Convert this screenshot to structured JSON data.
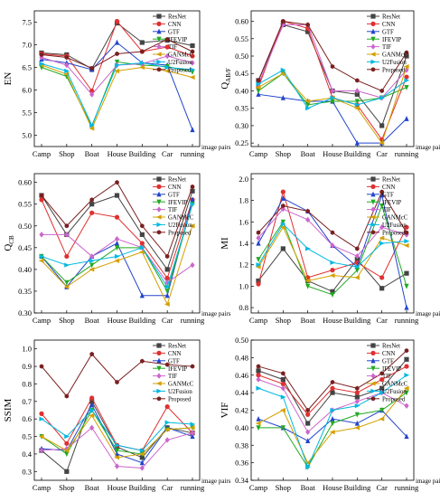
{
  "series_names": [
    "ResNet",
    "CNN",
    "GTF",
    "IFEVIP",
    "TIF",
    "GANMcC",
    "U2Fusion",
    "Proposed"
  ],
  "series_colors": [
    "#444444",
    "#e03030",
    "#2244cc",
    "#22aa22",
    "#cc66cc",
    "#d4a000",
    "#00b8e0",
    "#7a2020"
  ],
  "series_markers": [
    "square",
    "circle",
    "triangle",
    "triangle-down",
    "diamond",
    "triangle-left",
    "triangle-right",
    "hexagon"
  ],
  "categories": [
    "Camp",
    "Shop",
    "Boat",
    "House",
    "Building",
    "Car",
    "running"
  ],
  "x_annotation": "image pairs",
  "chart_data": [
    {
      "type": "line",
      "ylabel": "EN",
      "ylim": [
        4.75,
        7.75
      ],
      "yticks": [
        5.0,
        5.5,
        6.0,
        6.5,
        7.0,
        7.5
      ],
      "tick_decimals": 1,
      "categories": [
        "Camp",
        "Shop",
        "Boat",
        "House",
        "Building",
        "Car",
        "running"
      ],
      "series": [
        {
          "name": "ResNet",
          "values": [
            6.82,
            6.78,
            6.47,
            7.48,
            7.05,
            7.1,
            6.98
          ]
        },
        {
          "name": "CNN",
          "values": [
            6.8,
            6.75,
            5.98,
            7.52,
            6.85,
            6.95,
            6.75
          ]
        },
        {
          "name": "GTF",
          "values": [
            6.68,
            6.6,
            6.45,
            7.05,
            6.6,
            6.55,
            5.12
          ]
        },
        {
          "name": "IFEVIP",
          "values": [
            6.5,
            6.3,
            5.2,
            6.62,
            6.55,
            6.52,
            6.4
          ]
        },
        {
          "name": "TIF",
          "values": [
            6.72,
            6.55,
            5.9,
            6.55,
            6.58,
            6.75,
            6.6
          ]
        },
        {
          "name": "GANMcC",
          "values": [
            6.55,
            6.35,
            5.15,
            6.42,
            6.5,
            6.42,
            6.28
          ]
        },
        {
          "name": "U2Fusion",
          "values": [
            6.58,
            6.42,
            5.22,
            6.55,
            6.6,
            6.5,
            6.45
          ]
        },
        {
          "name": "Proposed",
          "values": [
            6.78,
            6.72,
            6.48,
            6.8,
            6.85,
            7.12,
            6.85
          ]
        }
      ]
    },
    {
      "type": "line",
      "ylabel": "Q_AB/F",
      "ylim": [
        0.24,
        0.63
      ],
      "yticks": [
        0.25,
        0.3,
        0.35,
        0.4,
        0.45,
        0.5,
        0.55,
        0.6
      ],
      "tick_decimals": 2,
      "categories": [
        "Camp",
        "Shop",
        "Boat",
        "House",
        "Building",
        "Car",
        "running"
      ],
      "series": [
        {
          "name": "ResNet",
          "values": [
            0.43,
            0.59,
            0.57,
            0.4,
            0.39,
            0.3,
            0.5
          ]
        },
        {
          "name": "CNN",
          "values": [
            0.41,
            0.6,
            0.58,
            0.38,
            0.36,
            0.26,
            0.44
          ]
        },
        {
          "name": "GTF",
          "values": [
            0.39,
            0.38,
            0.37,
            0.37,
            0.25,
            0.25,
            0.32
          ]
        },
        {
          "name": "IFEVIP",
          "values": [
            0.4,
            0.45,
            0.36,
            0.37,
            0.37,
            0.38,
            0.41
          ]
        },
        {
          "name": "TIF",
          "values": [
            0.42,
            0.59,
            0.59,
            0.4,
            0.4,
            0.38,
            0.46
          ]
        },
        {
          "name": "GANMcC",
          "values": [
            0.41,
            0.45,
            0.37,
            0.38,
            0.35,
            0.25,
            0.47
          ]
        },
        {
          "name": "U2Fusion",
          "values": [
            0.42,
            0.46,
            0.35,
            0.38,
            0.36,
            0.38,
            0.43
          ]
        },
        {
          "name": "Proposed",
          "values": [
            0.43,
            0.6,
            0.59,
            0.47,
            0.43,
            0.4,
            0.51
          ]
        }
      ]
    },
    {
      "type": "line",
      "ylabel": "Q_CB",
      "ylim": [
        0.3,
        0.62
      ],
      "yticks": [
        0.3,
        0.35,
        0.4,
        0.45,
        0.5,
        0.55,
        0.6
      ],
      "tick_decimals": 2,
      "categories": [
        "Camp",
        "Shop",
        "Boat",
        "House",
        "Building",
        "Car",
        "running"
      ],
      "series": [
        {
          "name": "ResNet",
          "values": [
            0.57,
            0.48,
            0.55,
            0.57,
            0.48,
            0.4,
            0.58
          ]
        },
        {
          "name": "CNN",
          "values": [
            0.56,
            0.43,
            0.53,
            0.52,
            0.46,
            0.38,
            0.56
          ]
        },
        {
          "name": "GTF",
          "values": [
            0.43,
            0.36,
            0.43,
            0.46,
            0.34,
            0.34,
            0.56
          ]
        },
        {
          "name": "IFEVIP",
          "values": [
            0.43,
            0.37,
            0.41,
            0.45,
            0.45,
            0.35,
            0.55
          ]
        },
        {
          "name": "TIF",
          "values": [
            0.48,
            0.48,
            0.43,
            0.47,
            0.45,
            0.37,
            0.41
          ]
        },
        {
          "name": "GANMcC",
          "values": [
            0.42,
            0.36,
            0.4,
            0.42,
            0.44,
            0.32,
            0.5
          ]
        },
        {
          "name": "U2Fusion",
          "values": [
            0.43,
            0.41,
            0.42,
            0.43,
            0.45,
            0.36,
            0.55
          ]
        },
        {
          "name": "Proposed",
          "values": [
            0.57,
            0.5,
            0.56,
            0.6,
            0.5,
            0.43,
            0.59
          ]
        }
      ]
    },
    {
      "type": "line",
      "ylabel": "MI",
      "ylim": [
        0.75,
        2.05
      ],
      "yticks": [
        0.8,
        1.0,
        1.2,
        1.4,
        1.6,
        1.8,
        2.0
      ],
      "tick_decimals": 1,
      "categories": [
        "Camp",
        "Shop",
        "Boat",
        "House",
        "Building",
        "Car",
        "running"
      ],
      "series": [
        {
          "name": "ResNet",
          "values": [
            1.05,
            1.35,
            1.05,
            0.95,
            1.25,
            0.98,
            1.12
          ]
        },
        {
          "name": "CNN",
          "values": [
            1.02,
            1.88,
            1.08,
            1.15,
            1.22,
            1.08,
            1.55
          ]
        },
        {
          "name": "GTF",
          "values": [
            1.4,
            1.82,
            1.7,
            1.38,
            1.18,
            1.85,
            0.8
          ]
        },
        {
          "name": "IFEVIP",
          "values": [
            1.25,
            1.6,
            1.0,
            0.92,
            1.15,
            1.75,
            1.0
          ]
        },
        {
          "name": "TIF",
          "values": [
            1.45,
            1.72,
            1.62,
            1.38,
            1.28,
            1.55,
            1.48
          ]
        },
        {
          "name": "GANMcC",
          "values": [
            1.18,
            1.55,
            1.05,
            1.1,
            1.08,
            1.45,
            1.38
          ]
        },
        {
          "name": "U2Fusion",
          "values": [
            1.2,
            1.58,
            1.35,
            1.22,
            1.18,
            1.4,
            1.42
          ]
        },
        {
          "name": "Proposed",
          "values": [
            1.5,
            1.75,
            1.7,
            1.5,
            1.35,
            1.88,
            1.5
          ]
        }
      ]
    },
    {
      "type": "line",
      "ylabel": "SSIM",
      "ylim": [
        0.25,
        1.05
      ],
      "yticks": [
        0.3,
        0.4,
        0.5,
        0.6,
        0.7,
        0.8,
        0.9,
        1.0
      ],
      "tick_decimals": 1,
      "categories": [
        "Camp",
        "Shop",
        "Boat",
        "House",
        "Building",
        "Car",
        "running"
      ],
      "series": [
        {
          "name": "ResNet",
          "values": [
            0.42,
            0.3,
            0.7,
            0.44,
            0.38,
            0.55,
            0.52
          ]
        },
        {
          "name": "CNN",
          "values": [
            0.63,
            0.46,
            0.72,
            0.45,
            0.42,
            0.67,
            0.52
          ]
        },
        {
          "name": "GTF",
          "values": [
            0.43,
            0.42,
            0.68,
            0.4,
            0.35,
            0.55,
            0.5
          ]
        },
        {
          "name": "IFEVIP",
          "values": [
            0.5,
            0.4,
            0.65,
            0.42,
            0.4,
            0.54,
            0.55
          ]
        },
        {
          "name": "TIF",
          "values": [
            0.42,
            0.43,
            0.55,
            0.33,
            0.32,
            0.48,
            0.52
          ]
        },
        {
          "name": "GANMcC",
          "values": [
            0.5,
            0.42,
            0.62,
            0.38,
            0.4,
            0.54,
            0.55
          ]
        },
        {
          "name": "U2Fusion",
          "values": [
            0.6,
            0.5,
            0.65,
            0.45,
            0.42,
            0.58,
            0.57
          ]
        },
        {
          "name": "Proposed",
          "values": [
            0.9,
            0.73,
            0.97,
            0.81,
            0.93,
            0.91,
            0.9
          ]
        }
      ]
    },
    {
      "type": "line",
      "ylabel": "VIF",
      "ylim": [
        0.34,
        0.5
      ],
      "yticks": [
        0.34,
        0.36,
        0.38,
        0.4,
        0.42,
        0.44,
        0.46,
        0.48,
        0.5
      ],
      "tick_decimals": 2,
      "categories": [
        "Camp",
        "Shop",
        "Boat",
        "House",
        "Building",
        "Car",
        "running"
      ],
      "series": [
        {
          "name": "ResNet",
          "values": [
            0.465,
            0.455,
            0.405,
            0.44,
            0.435,
            0.445,
            0.478
          ]
        },
        {
          "name": "CNN",
          "values": [
            0.46,
            0.45,
            0.415,
            0.445,
            0.44,
            0.455,
            0.47
          ]
        },
        {
          "name": "GTF",
          "values": [
            0.41,
            0.4,
            0.385,
            0.41,
            0.405,
            0.42,
            0.39
          ]
        },
        {
          "name": "IFEVIP",
          "values": [
            0.4,
            0.4,
            0.355,
            0.405,
            0.415,
            0.42,
            0.44
          ]
        },
        {
          "name": "TIF",
          "values": [
            0.455,
            0.445,
            0.395,
            0.42,
            0.43,
            0.44,
            0.425
          ]
        },
        {
          "name": "GANMcC",
          "values": [
            0.405,
            0.42,
            0.36,
            0.395,
            0.4,
            0.41,
            0.445
          ]
        },
        {
          "name": "U2Fusion",
          "values": [
            0.445,
            0.435,
            0.355,
            0.42,
            0.425,
            0.44,
            0.46
          ]
        },
        {
          "name": "Proposed",
          "values": [
            0.47,
            0.462,
            0.42,
            0.452,
            0.445,
            0.462,
            0.488
          ]
        }
      ]
    }
  ]
}
